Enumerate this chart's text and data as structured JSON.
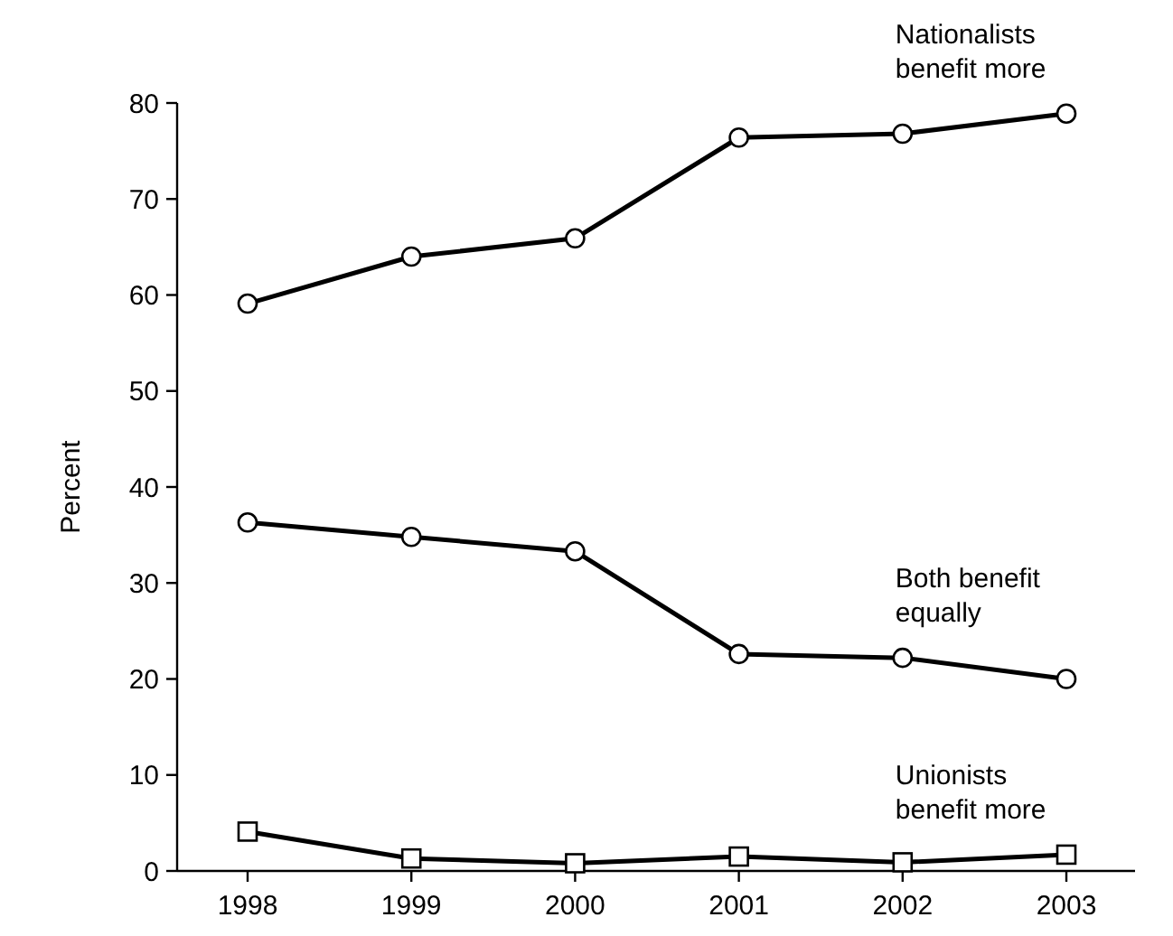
{
  "chart_data": {
    "type": "line",
    "ylabel": "Percent",
    "categories": [
      "1998",
      "1999",
      "2000",
      "2001",
      "2002",
      "2003"
    ],
    "ylim": [
      0,
      80
    ],
    "yticks": [
      0,
      10,
      20,
      30,
      40,
      50,
      60,
      70,
      80
    ],
    "grid": false,
    "line_style": "solid",
    "series": [
      {
        "name": "Nationalists benefit more",
        "color": "#000000",
        "marker": "circle",
        "values": [
          59.1,
          64.0,
          65.9,
          76.4,
          76.8,
          78.9
        ]
      },
      {
        "name": "Both benefit equally",
        "color": "#000000",
        "marker": "circle",
        "values": [
          36.3,
          34.8,
          33.3,
          22.6,
          22.2,
          20.0
        ]
      },
      {
        "name": "Unionists benefit more",
        "color": "#000000",
        "marker": "square",
        "values": [
          4.1,
          1.3,
          0.8,
          1.5,
          0.9,
          1.7
        ]
      }
    ]
  }
}
